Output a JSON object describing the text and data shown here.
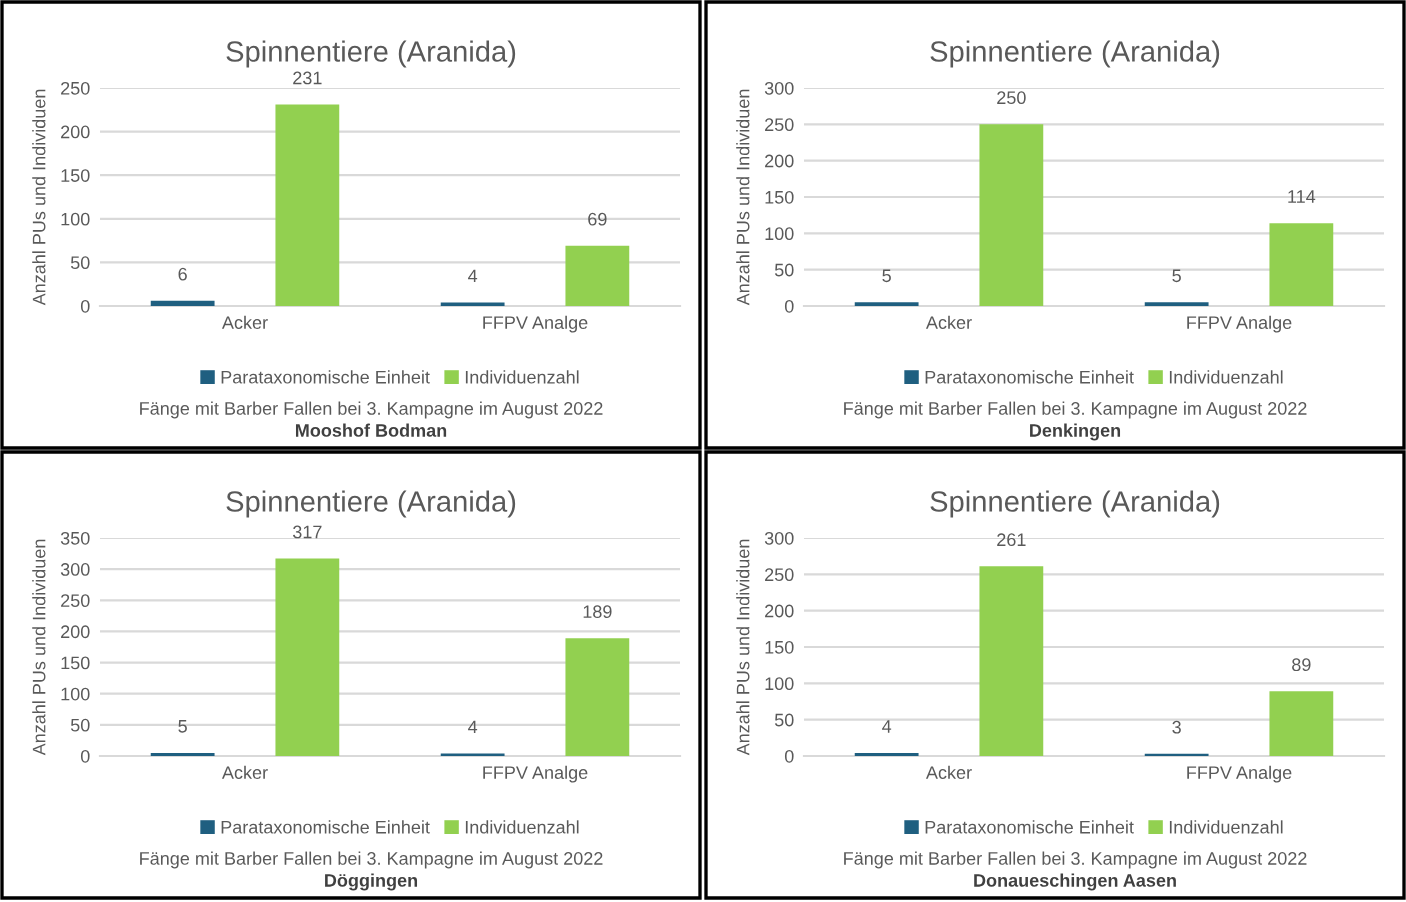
{
  "chart_data": [
    {
      "type": "bar",
      "title": "Spinnentiere (Aranida)",
      "ylabel": "Anzahl PUs und Individuen",
      "categories": [
        "Acker",
        "FFPV Analge"
      ],
      "series": [
        {
          "name": "Parataxonomische Einheit",
          "color": "#1f5f80",
          "values": [
            6,
            4
          ]
        },
        {
          "name": "Individuenzahl",
          "color": "#92d050",
          "values": [
            231,
            69
          ]
        }
      ],
      "ylim": [
        0,
        250
      ],
      "yticks": [
        0,
        50,
        100,
        150,
        200,
        250
      ],
      "grid": "y",
      "legend": "bottom",
      "data_labels": true,
      "annotations": [
        "Fänge mit Barber Fallen bei 3. Kampagne im August 2022",
        "Mooshof Bodman"
      ]
    },
    {
      "type": "bar",
      "title": "Spinnentiere (Aranida)",
      "ylabel": "Anzahl PUs und Individuen",
      "categories": [
        "Acker",
        "FFPV Analge"
      ],
      "series": [
        {
          "name": "Parataxonomische Einheit",
          "color": "#1f5f80",
          "values": [
            5,
            5
          ]
        },
        {
          "name": "Individuenzahl",
          "color": "#92d050",
          "values": [
            250,
            114
          ]
        }
      ],
      "ylim": [
        0,
        300
      ],
      "yticks": [
        0,
        50,
        100,
        150,
        200,
        250,
        300
      ],
      "grid": "y",
      "legend": "bottom",
      "data_labels": true,
      "annotations": [
        "Fänge mit Barber Fallen bei 3. Kampagne im August 2022",
        "Denkingen"
      ]
    },
    {
      "type": "bar",
      "title": "Spinnentiere (Aranida)",
      "ylabel": "Anzahl PUs und Individuen",
      "categories": [
        "Acker",
        "FFPV Analge"
      ],
      "series": [
        {
          "name": "Parataxonomische Einheit",
          "color": "#1f5f80",
          "values": [
            5,
            4
          ]
        },
        {
          "name": "Individuenzahl",
          "color": "#92d050",
          "values": [
            317,
            189
          ]
        }
      ],
      "ylim": [
        0,
        350
      ],
      "yticks": [
        0,
        50,
        100,
        150,
        200,
        250,
        300,
        350
      ],
      "grid": "y",
      "legend": "bottom",
      "data_labels": true,
      "annotations": [
        "Fänge mit Barber Fallen bei 3. Kampagne im August 2022",
        "Döggingen"
      ]
    },
    {
      "type": "bar",
      "title": "Spinnentiere (Aranida)",
      "ylabel": "Anzahl PUs und Individuen",
      "categories": [
        "Acker",
        "FFPV Analge"
      ],
      "series": [
        {
          "name": "Parataxonomische Einheit",
          "color": "#1f5f80",
          "values": [
            4,
            3
          ]
        },
        {
          "name": "Individuenzahl",
          "color": "#92d050",
          "values": [
            261,
            89
          ]
        }
      ],
      "ylim": [
        0,
        300
      ],
      "yticks": [
        0,
        50,
        100,
        150,
        200,
        250,
        300
      ],
      "grid": "y",
      "legend": "bottom",
      "data_labels": true,
      "annotations": [
        "Fänge mit Barber Fallen bei 3. Kampagne im August 2022",
        "Donaueschingen Aasen"
      ]
    }
  ]
}
